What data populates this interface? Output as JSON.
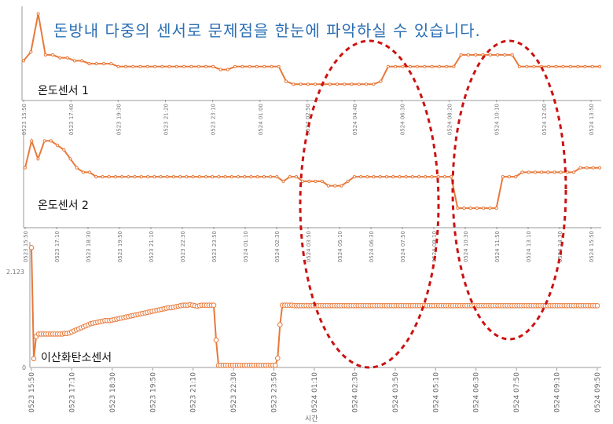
{
  "headline": "돈방내 다중의 센서로 문제점을 한눈에 파악하실 수 있습니다.",
  "colors": {
    "line": "#e8793a",
    "marker_fill": "#ffffff",
    "ellipse": "#cc1111",
    "headline": "#2b6fb3"
  },
  "chart_data": [
    {
      "type": "line",
      "label": "온도센서 1",
      "x_ticks": [
        "0523 15:50",
        "0523 17:40",
        "0523 19:30",
        "0523 21:20",
        "0523 23:10",
        "0524 01:00",
        "0524 02:50",
        "0524 04:40",
        "0524 06:30",
        "0524 08:20",
        "0524 10:10",
        "0524 12:00",
        "0524 13:50"
      ],
      "series": [
        {
          "values": [
            52,
            55,
            68,
            54,
            54,
            53,
            53,
            52,
            52,
            51,
            51,
            51,
            51,
            50,
            50,
            50,
            50,
            50,
            50,
            50,
            50,
            50,
            50,
            50,
            50,
            50,
            50,
            49,
            49,
            50,
            50,
            50,
            50,
            50,
            50,
            50,
            45,
            44,
            44,
            44,
            44,
            44,
            44,
            44,
            44,
            44,
            44,
            44,
            44,
            45,
            50,
            50,
            50,
            50,
            50,
            50,
            50,
            50,
            50,
            50,
            54,
            54,
            54,
            54,
            54,
            54,
            54,
            54,
            50,
            50,
            50,
            50,
            50,
            50,
            50,
            50,
            50,
            50,
            50,
            50
          ]
        }
      ],
      "ylim": [
        39,
        70
      ]
    },
    {
      "type": "line",
      "label": "온도센서 2",
      "x_ticks": [
        "0523 15:50",
        "0523 17:10",
        "0523 18:30",
        "0523 19:50",
        "0523 21:10",
        "0523 22:30",
        "0523 23:50",
        "0524 01:10",
        "0524 02:30",
        "0524 03:50",
        "0524 05:10",
        "0524 06:30",
        "0524 07:50",
        "0524 09:10",
        "0524 10:30",
        "0524 11:50",
        "0524 13:10",
        "0524 14:30",
        "0524 15:50"
      ],
      "series": [
        {
          "values": [
            56,
            62,
            58,
            62,
            62,
            61,
            60,
            58,
            56,
            55,
            55,
            54,
            54,
            54,
            54,
            54,
            54,
            54,
            54,
            54,
            54,
            54,
            54,
            54,
            54,
            54,
            54,
            54,
            54,
            54,
            54,
            54,
            54,
            54,
            54,
            54,
            54,
            54,
            54,
            54,
            53,
            54,
            54,
            53,
            53,
            53,
            53,
            52,
            52,
            52,
            53,
            54,
            54,
            54,
            54,
            54,
            54,
            54,
            54,
            54,
            54,
            54,
            54,
            54,
            54,
            54,
            54,
            47,
            47,
            47,
            47,
            47,
            47,
            47,
            54,
            54,
            54,
            55,
            55,
            55,
            55,
            55,
            55,
            55,
            55,
            55,
            56,
            56,
            56,
            56
          ]
        }
      ],
      "ylim": [
        43,
        64
      ]
    },
    {
      "type": "line",
      "label": "이산화탄소센서",
      "xlabel": "시간",
      "y_ticks": [
        "2.123",
        "0"
      ],
      "x_ticks": [
        "0523 15:50",
        "0523 17:10",
        "0523 18:30",
        "0523 19:50",
        "0523 21:10",
        "0523 22:30",
        "0523 23:50",
        "0524 01:10",
        "0524 02:30",
        "0524 03:50",
        "0524 05:10",
        "0524 06:30",
        "0524 07:50",
        "0524 09:10",
        "0524 09:50"
      ],
      "series": [
        {
          "values": [
            2.3,
            0.14,
            0.57,
            0.62,
            0.62,
            0.62,
            0.62,
            0.62,
            0.62,
            0.62,
            0.62,
            0.62,
            0.62,
            0.62,
            0.63,
            0.63,
            0.64,
            0.66,
            0.68,
            0.7,
            0.72,
            0.74,
            0.76,
            0.78,
            0.8,
            0.82,
            0.83,
            0.84,
            0.85,
            0.86,
            0.87,
            0.88,
            0.88,
            0.88,
            0.89,
            0.9,
            0.91,
            0.92,
            0.93,
            0.94,
            0.95,
            0.96,
            0.97,
            0.98,
            0.99,
            1.0,
            1.01,
            1.02,
            1.03,
            1.04,
            1.05,
            1.06,
            1.07,
            1.08,
            1.09,
            1.1,
            1.11,
            1.12,
            1.13,
            1.13,
            1.14,
            1.15,
            1.16,
            1.17,
            1.18,
            1.18,
            1.18,
            1.19,
            1.18,
            1.17,
            1.16,
            1.17,
            1.18,
            1.18,
            1.18,
            1.18,
            1.18,
            1.18,
            0.5,
            0.01,
            0.01,
            0.01,
            0.01,
            0.01,
            0.01,
            0.01,
            0.01,
            0.01,
            0.01,
            0.01,
            0.01,
            0.01,
            0.01,
            0.01,
            0.01,
            0.01,
            0.01,
            0.01,
            0.01,
            0.01,
            0.01,
            0.01,
            0.01,
            0.01,
            0.15,
            0.8,
            1.18,
            1.18,
            1.18,
            1.18,
            1.18,
            1.17,
            1.17,
            1.17,
            1.17,
            1.17,
            1.17,
            1.17,
            1.17,
            1.17,
            1.17,
            1.17,
            1.17,
            1.17,
            1.17,
            1.17,
            1.17,
            1.17,
            1.17,
            1.17,
            1.17,
            1.17,
            1.17,
            1.17,
            1.17,
            1.17,
            1.17,
            1.17,
            1.17,
            1.17,
            1.17,
            1.17,
            1.17,
            1.17,
            1.17,
            1.17,
            1.17,
            1.17,
            1.17,
            1.17,
            1.17,
            1.17,
            1.17,
            1.17,
            1.17,
            1.17,
            1.17,
            1.17,
            1.17,
            1.17,
            1.17,
            1.17,
            1.17,
            1.17,
            1.17,
            1.17,
            1.17,
            1.17,
            1.17,
            1.17,
            1.17,
            1.17,
            1.17,
            1.17,
            1.17,
            1.17,
            1.17,
            1.17,
            1.17,
            1.17,
            1.17,
            1.17,
            1.17,
            1.17,
            1.17,
            1.17,
            1.17,
            1.17,
            1.17,
            1.17,
            1.17,
            1.17,
            1.17,
            1.17,
            1.17,
            1.17,
            1.17,
            1.17,
            1.17,
            1.17,
            1.17,
            1.17,
            1.17,
            1.17,
            1.17,
            1.17,
            1.17,
            1.17,
            1.17,
            1.17,
            1.17,
            1.17,
            1.17,
            1.17,
            1.17,
            1.17,
            1.17,
            1.17,
            1.17,
            1.17,
            1.17,
            1.17,
            1.17,
            1.17,
            1.17,
            1.17,
            1.17,
            1.17,
            1.17,
            1.17,
            1.17,
            1.17,
            1.17,
            1.17,
            1.17,
            1.17,
            1.17,
            1.17,
            1.17,
            1.17
          ]
        }
      ],
      "ylim": [
        0,
        2.35
      ]
    }
  ]
}
